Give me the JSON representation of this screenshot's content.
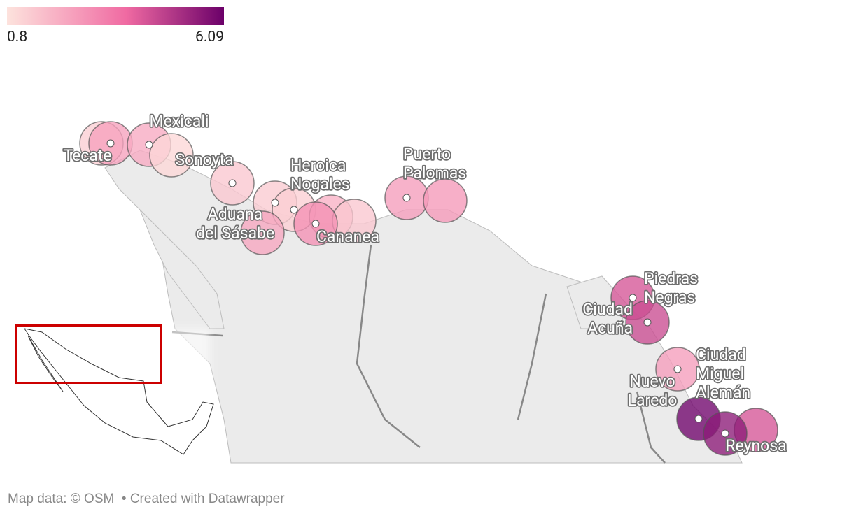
{
  "legend": {
    "min": 0.8,
    "max": 6.09,
    "colors": [
      "#fde3dd",
      "#f06aa2",
      "#6b0069"
    ]
  },
  "symbols": [
    {
      "label": null,
      "value": 1.3
    },
    {
      "label": [
        "Tecate"
      ],
      "value": 2.4
    },
    {
      "label": [
        "Mexicali"
      ],
      "value": 2.2
    },
    {
      "label": [
        "Sonoyta"
      ],
      "value": 1.1
    },
    {
      "label": null,
      "value": 1.5
    },
    {
      "label": null,
      "value": 1.4
    },
    {
      "label": [
        "Heroica",
        "Nogales"
      ],
      "value": 1.3
    },
    {
      "label": [
        "Aduana",
        "del Sásabe"
      ],
      "value": 2.3
    },
    {
      "label": null,
      "value": 2.0
    },
    {
      "label": null,
      "value": 1.5
    },
    {
      "label": [
        "Cananea"
      ],
      "value": 2.8
    },
    {
      "label": [
        "Puerto",
        "Palomas"
      ],
      "value": 2.5
    },
    {
      "label": null,
      "value": 2.6
    },
    {
      "label": [
        "Piedras",
        "Negras"
      ],
      "value": 4.2
    },
    {
      "label": [
        "Ciudad",
        "Acuña"
      ],
      "value": 4.4
    },
    {
      "label": [
        "Nuevo",
        "Laredo"
      ],
      "value": 2.5
    },
    {
      "label": null,
      "value": 4.2
    },
    {
      "label": [
        "Ciudad",
        "Miguel",
        "Alemán"
      ],
      "value": 6.0
    },
    {
      "label": [
        "Reynosa"
      ],
      "value": 5.5
    }
  ],
  "footer": {
    "source": "Map data: © OSM",
    "credit": "• Created with Datawrapper"
  }
}
